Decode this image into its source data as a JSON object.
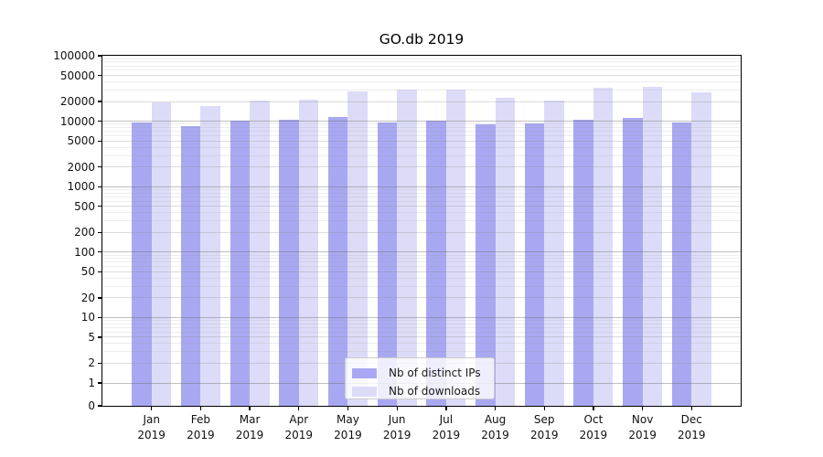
{
  "chart_data": {
    "type": "bar",
    "title": "GO.db 2019",
    "categories": [
      "Jan 2019",
      "Feb 2019",
      "Mar 2019",
      "Apr 2019",
      "May 2019",
      "Jun 2019",
      "Jul 2019",
      "Aug 2019",
      "Sep 2019",
      "Oct 2019",
      "Nov 2019",
      "Dec 2019"
    ],
    "series": [
      {
        "name": "Nb of distinct IPs",
        "color": "#a8a8f2",
        "values": [
          9500,
          8300,
          10200,
          10500,
          11700,
          9700,
          10200,
          9000,
          9300,
          10500,
          11400,
          9500
        ]
      },
      {
        "name": "Nb of downloads",
        "color": "#dcdcf8",
        "values": [
          19300,
          17000,
          21000,
          21500,
          29000,
          30500,
          30000,
          23000,
          21000,
          32000,
          33000,
          28000
        ]
      }
    ],
    "yscale": "symlog",
    "ylim": [
      0,
      100000
    ],
    "yticks": [
      100000,
      50000,
      20000,
      10000,
      5000,
      2000,
      1000,
      500,
      200,
      100,
      50,
      20,
      10,
      5,
      2,
      1,
      0
    ],
    "grid": true,
    "legend_position": "lower center",
    "xlabel": "",
    "ylabel": ""
  }
}
